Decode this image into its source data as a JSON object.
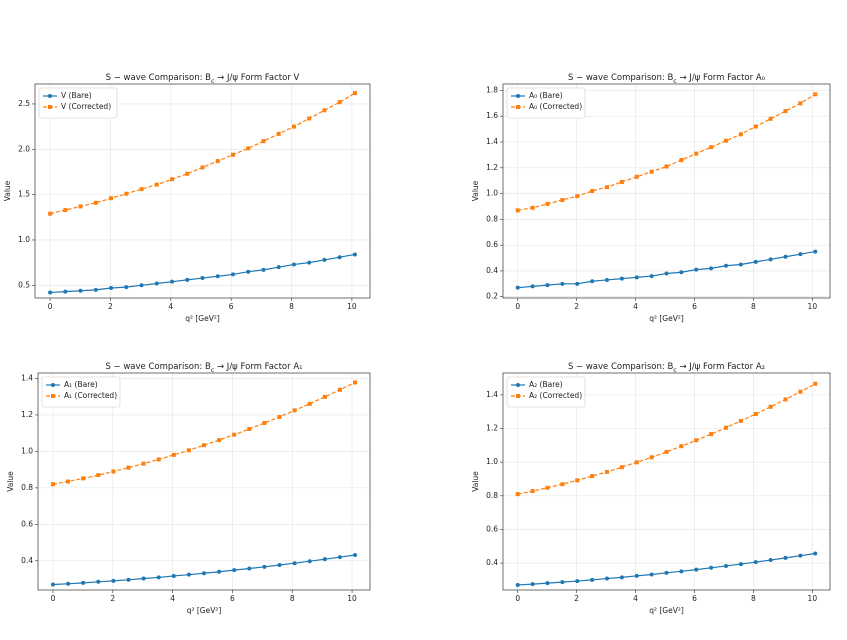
{
  "chart_data": [
    {
      "type": "line",
      "title": "S − wave Comparison: B_c → J/ψ Form Factor V",
      "x_label": "q² [GeV²]",
      "y_label": "Value",
      "x": [
        0,
        0.505,
        1.01,
        1.515,
        2.02,
        2.525,
        3.03,
        3.535,
        4.04,
        4.545,
        5.05,
        5.555,
        6.06,
        6.565,
        7.07,
        7.575,
        8.08,
        8.585,
        9.09,
        9.595,
        10.1
      ],
      "series": [
        {
          "name": "V (Bare)",
          "color": "#1f77b4",
          "marker": "circle",
          "dashed": false,
          "values": [
            0.42,
            0.43,
            0.44,
            0.45,
            0.47,
            0.48,
            0.5,
            0.52,
            0.54,
            0.56,
            0.58,
            0.6,
            0.62,
            0.65,
            0.67,
            0.7,
            0.73,
            0.75,
            0.78,
            0.81,
            0.84
          ]
        },
        {
          "name": "V (Corrected)",
          "color": "#ff7f0e",
          "marker": "square",
          "dashed": true,
          "values": [
            1.29,
            1.33,
            1.37,
            1.41,
            1.46,
            1.51,
            1.56,
            1.61,
            1.67,
            1.73,
            1.8,
            1.87,
            1.94,
            2.01,
            2.09,
            2.17,
            2.25,
            2.34,
            2.43,
            2.52,
            2.62
          ]
        }
      ],
      "xlim": [
        -0.5,
        10.6
      ],
      "xticks": [
        0,
        2,
        4,
        6,
        8,
        10
      ],
      "ylim": [
        0.36,
        2.72
      ],
      "yticks": [
        0.5,
        {
          "value": 1,
          "label": "1.0"
        },
        1.5,
        {
          "value": 2,
          "label": "2.0"
        },
        2.5
      ],
      "grid": true,
      "legend": "upper-left"
    },
    {
      "type": "line",
      "title": "S − wave Comparison: B_c → J/ψ Form Factor A₀",
      "x_label": "q² [GeV²]",
      "y_label": "Value",
      "x": [
        0,
        0.505,
        1.01,
        1.515,
        2.02,
        2.525,
        3.03,
        3.535,
        4.04,
        4.545,
        5.05,
        5.555,
        6.06,
        6.565,
        7.07,
        7.575,
        8.08,
        8.585,
        9.09,
        9.595,
        10.1
      ],
      "series": [
        {
          "name": "A₀ (Bare)",
          "color": "#1f77b4",
          "marker": "circle",
          "dashed": false,
          "values": [
            0.27,
            0.28,
            0.29,
            0.3,
            0.3,
            0.32,
            0.33,
            0.34,
            0.35,
            0.36,
            0.38,
            0.39,
            0.41,
            0.42,
            0.44,
            0.45,
            0.47,
            0.49,
            0.51,
            0.53,
            0.55
          ]
        },
        {
          "name": "A₀ (Corrected)",
          "color": "#ff7f0e",
          "marker": "square",
          "dashed": true,
          "values": [
            0.87,
            0.89,
            0.92,
            0.95,
            0.98,
            1.02,
            1.05,
            1.09,
            1.13,
            1.17,
            1.21,
            1.26,
            1.31,
            1.36,
            1.41,
            1.46,
            1.52,
            1.58,
            1.64,
            1.7,
            1.77
          ]
        }
      ],
      "xlim": [
        -0.5,
        10.6
      ],
      "xticks": [
        0,
        2,
        4,
        6,
        8,
        10
      ],
      "ylim": [
        0.19,
        1.85
      ],
      "yticks": [
        0.2,
        0.4,
        0.6,
        0.8,
        {
          "value": 1,
          "label": "1.0"
        },
        1.2,
        1.4,
        1.6,
        1.8
      ],
      "grid": true,
      "legend": "upper-left"
    },
    {
      "type": "line",
      "title": "S − wave Comparison: B_c → J/ψ Form Factor A₁",
      "x_label": "q² [GeV²]",
      "y_label": "Value",
      "x": [
        0,
        0.505,
        1.01,
        1.515,
        2.02,
        2.525,
        3.03,
        3.535,
        4.04,
        4.545,
        5.05,
        5.555,
        6.06,
        6.565,
        7.07,
        7.575,
        8.08,
        8.585,
        9.09,
        9.595,
        10.1
      ],
      "series": [
        {
          "name": "A₁ (Bare)",
          "color": "#1f77b4",
          "marker": "circle",
          "dashed": false,
          "values": [
            0.27,
            0.274,
            0.279,
            0.285,
            0.29,
            0.296,
            0.303,
            0.309,
            0.317,
            0.324,
            0.332,
            0.34,
            0.349,
            0.358,
            0.367,
            0.377,
            0.387,
            0.398,
            0.409,
            0.42,
            0.432
          ]
        },
        {
          "name": "A₁ (Corrected)",
          "color": "#ff7f0e",
          "marker": "square",
          "dashed": true,
          "values": [
            0.82,
            0.835,
            0.852,
            0.87,
            0.89,
            0.911,
            0.933,
            0.956,
            0.981,
            1.006,
            1.034,
            1.062,
            1.092,
            1.123,
            1.156,
            1.189,
            1.225,
            1.261,
            1.299,
            1.338,
            1.378
          ]
        }
      ],
      "xlim": [
        -0.5,
        10.6
      ],
      "xticks": [
        0,
        2,
        4,
        6,
        8,
        10
      ],
      "ylim": [
        0.24,
        1.43
      ],
      "yticks": [
        0.4,
        0.6,
        0.8,
        {
          "value": 1,
          "label": "1.0"
        },
        1.2,
        1.4
      ],
      "grid": true,
      "legend": "upper-left"
    },
    {
      "type": "line",
      "title": "S − wave Comparison: B_c → J/ψ Form Factor A₂",
      "x_label": "q² [GeV²]",
      "y_label": "Value",
      "x": [
        0,
        0.505,
        1.01,
        1.515,
        2.02,
        2.525,
        3.03,
        3.535,
        4.04,
        4.545,
        5.05,
        5.555,
        6.06,
        6.565,
        7.07,
        7.575,
        8.08,
        8.585,
        9.09,
        9.595,
        10.1
      ],
      "series": [
        {
          "name": "A₂ (Bare)",
          "color": "#1f77b4",
          "marker": "circle",
          "dashed": false,
          "values": [
            0.27,
            0.275,
            0.281,
            0.287,
            0.293,
            0.3,
            0.308,
            0.315,
            0.324,
            0.332,
            0.342,
            0.351,
            0.361,
            0.372,
            0.383,
            0.394,
            0.406,
            0.418,
            0.431,
            0.444,
            0.457
          ]
        },
        {
          "name": "A₂ (Corrected)",
          "color": "#ff7f0e",
          "marker": "square",
          "dashed": true,
          "values": [
            0.81,
            0.828,
            0.848,
            0.869,
            0.892,
            0.917,
            0.942,
            0.97,
            0.999,
            1.029,
            1.061,
            1.095,
            1.13,
            1.167,
            1.205,
            1.245,
            1.286,
            1.329,
            1.373,
            1.419,
            1.466
          ]
        }
      ],
      "xlim": [
        -0.5,
        10.6
      ],
      "xticks": [
        0,
        2,
        4,
        6,
        8,
        10
      ],
      "ylim": [
        0.24,
        1.53
      ],
      "yticks": [
        0.4,
        0.6,
        0.8,
        {
          "value": 1,
          "label": "1.0"
        },
        1.2,
        1.4
      ],
      "grid": true,
      "legend": "upper-left"
    }
  ]
}
